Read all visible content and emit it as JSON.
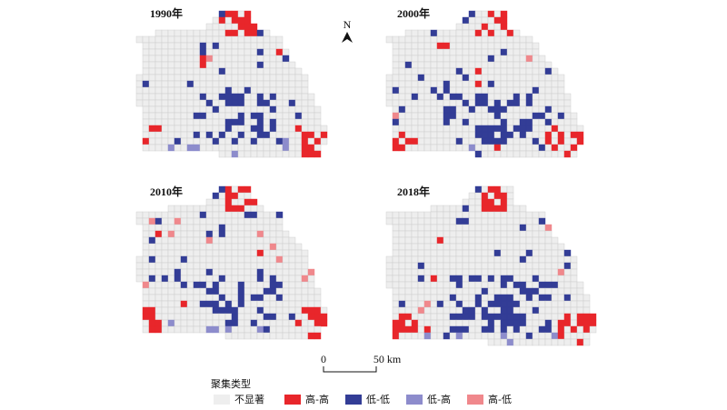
{
  "panels": [
    {
      "title": "1990年"
    },
    {
      "title": "2000年"
    },
    {
      "title": "2010年"
    },
    {
      "title": "2018年"
    }
  ],
  "north_arrow": "N",
  "scale_bar": {
    "start": "0",
    "end": "50 km"
  },
  "legend": {
    "title": "聚集类型",
    "items": [
      {
        "label": "不显著",
        "color": "#eeeeee"
      },
      {
        "label": "高-高",
        "color": "#e8262b"
      },
      {
        "label": "低-低",
        "color": "#333d96"
      },
      {
        "label": "低-高",
        "color": "#8d8ccc"
      },
      {
        "label": "高-低",
        "color": "#f0888c"
      }
    ]
  }
}
